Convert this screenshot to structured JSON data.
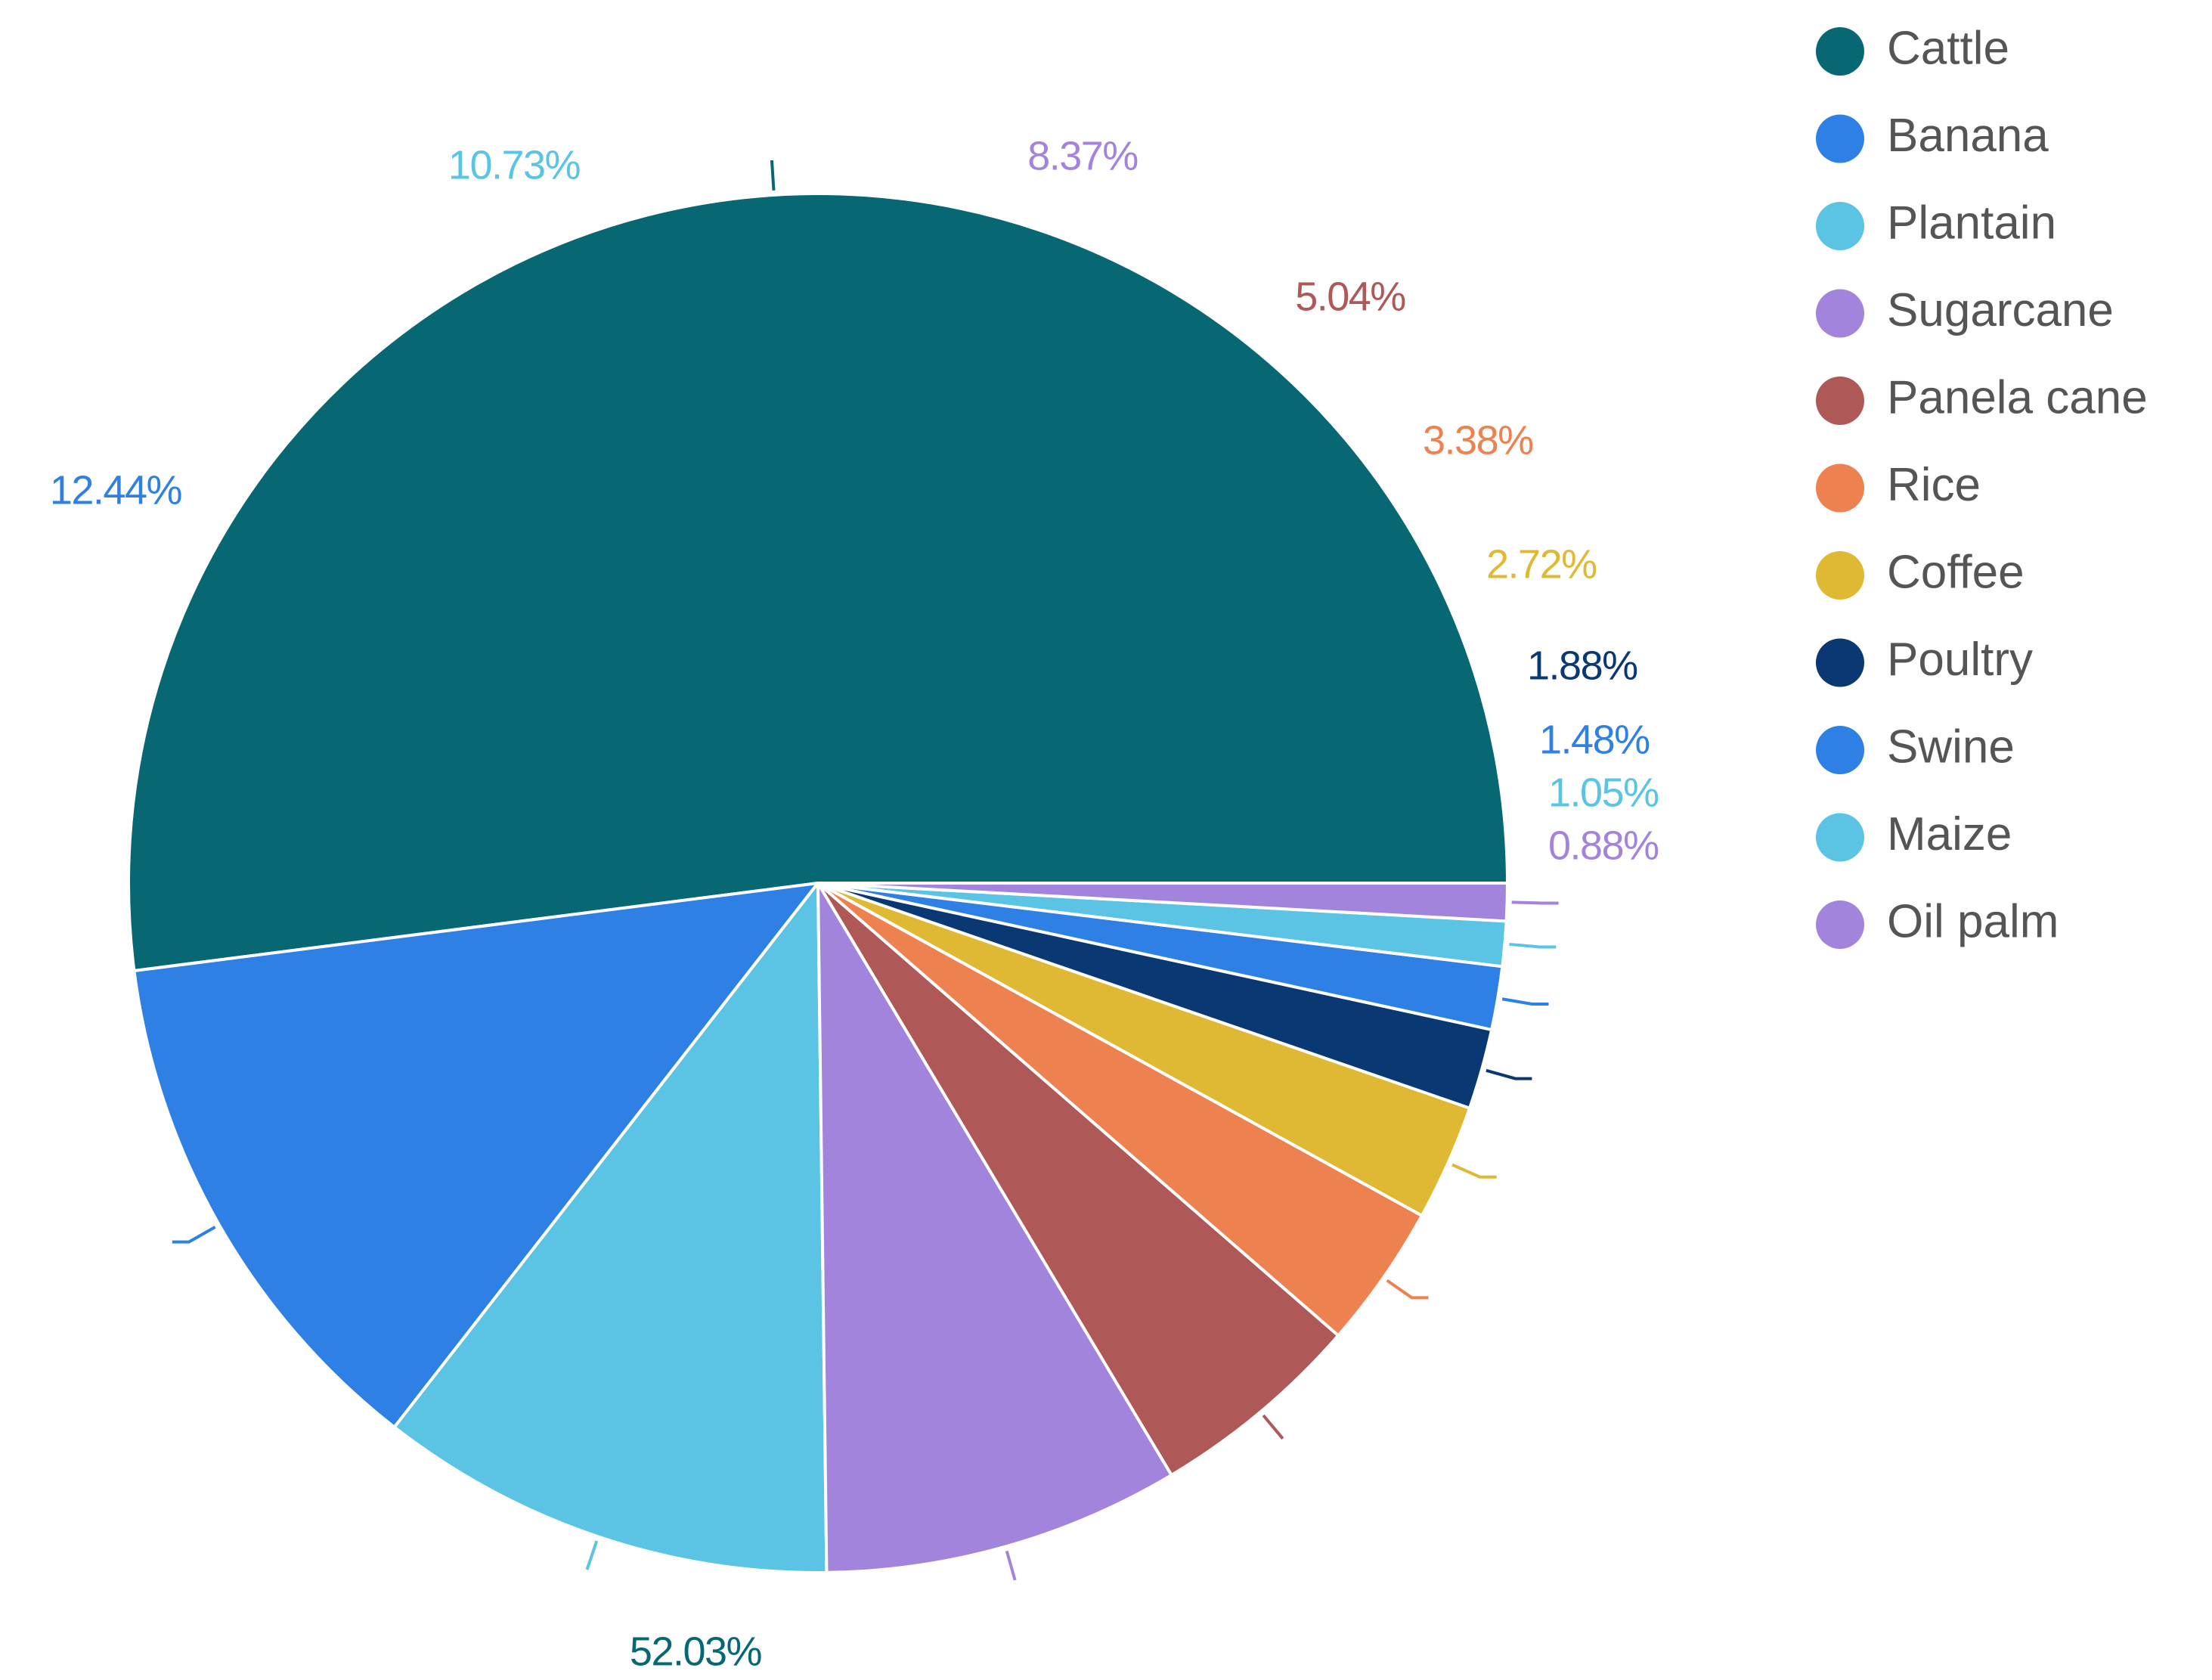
{
  "chart_data": {
    "type": "pie",
    "title": "",
    "start_angle_deg": 0,
    "direction": "counterclockwise",
    "legend_position": "right",
    "slices": [
      {
        "label": "Cattle",
        "value": 52.03,
        "display": "52.03%",
        "color": "#076873"
      },
      {
        "label": "Banana",
        "value": 12.44,
        "display": "12.44%",
        "color": "#2F80E4"
      },
      {
        "label": "Plantain",
        "value": 10.73,
        "display": "10.73%",
        "color": "#5BC4E4"
      },
      {
        "label": "Sugarcane",
        "value": 8.37,
        "display": "8.37%",
        "color": "#A384DC"
      },
      {
        "label": "Panela cane",
        "value": 5.04,
        "display": "5.04%",
        "color": "#AE5857"
      },
      {
        "label": "Rice",
        "value": 3.38,
        "display": "3.38%",
        "color": "#EE8150"
      },
      {
        "label": "Coffee",
        "value": 2.72,
        "display": "2.72%",
        "color": "#E0B934"
      },
      {
        "label": "Poultry",
        "value": 1.88,
        "display": "1.88%",
        "color": "#0A3872"
      },
      {
        "label": "Swine",
        "value": 1.48,
        "display": "1.48%",
        "color": "#2F80E4"
      },
      {
        "label": "Maize",
        "value": 1.05,
        "display": "1.05%",
        "color": "#5BC4E4"
      },
      {
        "label": "Oil palm",
        "value": 0.88,
        "display": "0.88%",
        "color": "#A384DC"
      }
    ]
  }
}
